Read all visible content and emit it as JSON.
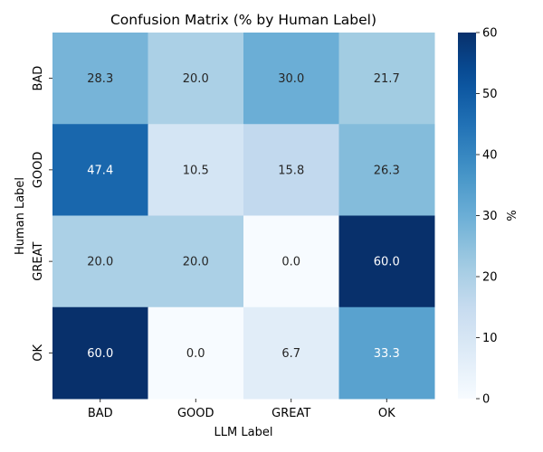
{
  "chart_data": {
    "type": "heatmap",
    "title": "Confusion Matrix (% by Human Label)",
    "xlabel": "LLM Label",
    "ylabel": "Human Label",
    "x_categories": [
      "BAD",
      "GOOD",
      "GREAT",
      "OK"
    ],
    "y_categories": [
      "BAD",
      "GOOD",
      "GREAT",
      "OK"
    ],
    "values": [
      [
        28.3,
        20.0,
        30.0,
        21.7
      ],
      [
        47.4,
        10.5,
        15.8,
        26.3
      ],
      [
        20.0,
        20.0,
        0.0,
        60.0
      ],
      [
        60.0,
        0.0,
        6.7,
        33.3
      ]
    ],
    "value_format_decimals": 1,
    "colorbar": {
      "label": "%",
      "range": [
        0,
        60
      ],
      "ticks": [
        0,
        10,
        20,
        30,
        40,
        50,
        60
      ],
      "colormap": "Blues"
    },
    "grid": false,
    "legend": "none"
  }
}
